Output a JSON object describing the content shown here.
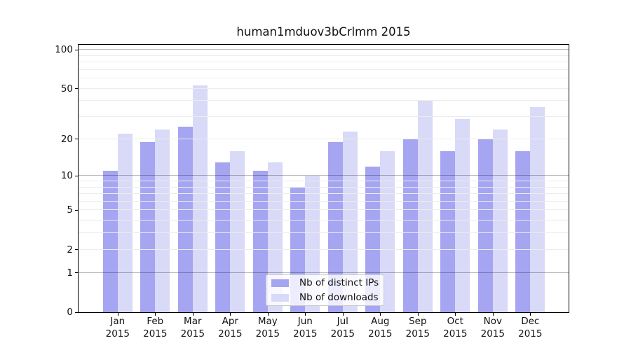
{
  "chart_data": {
    "type": "bar",
    "title": "human1mduov3bCrlmm 2015",
    "categories": [
      "Jan",
      "Feb",
      "Mar",
      "Apr",
      "May",
      "Jun",
      "Jul",
      "Aug",
      "Sep",
      "Oct",
      "Nov",
      "Dec"
    ],
    "category_year": "2015",
    "series": [
      {
        "name": "Nb of distinct IPs",
        "color": "#a5a5f2",
        "values": [
          11,
          19,
          25,
          13,
          11,
          8,
          19,
          12,
          20,
          16,
          20,
          16
        ]
      },
      {
        "name": "Nb of downloads",
        "color": "#d9d9f8",
        "values": [
          22,
          24,
          53,
          16,
          13,
          10,
          23,
          16,
          40,
          29,
          24,
          36
        ]
      }
    ],
    "y_axis": {
      "ticks": [
        0,
        1,
        2,
        5,
        10,
        20,
        50,
        100
      ],
      "scale": "log10(value+1)",
      "range": [
        0,
        101
      ]
    },
    "grid": {
      "major": [
        1,
        10,
        100
      ],
      "minor": [
        2,
        3,
        4,
        5,
        6,
        7,
        8,
        9,
        20,
        30,
        40,
        50,
        60,
        70,
        80,
        90
      ]
    },
    "legend_position": "bottom-center",
    "colors": {
      "grid_major": "#bdbdbd",
      "grid_minor": "#ececec",
      "axis": "#000000",
      "text": "#111111",
      "legend_border": "#cccccc",
      "legend_bg": "rgba(255,255,255,0.8)"
    }
  }
}
